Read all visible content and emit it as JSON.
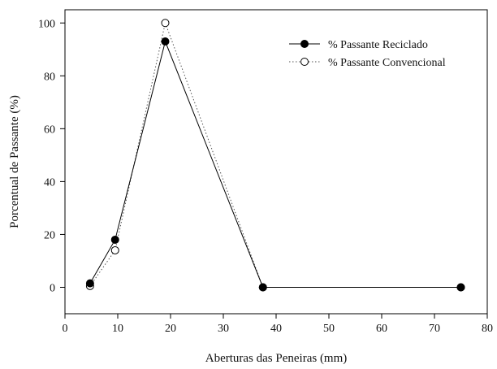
{
  "chart_data": {
    "type": "line",
    "xlabel": "Aberturas das Peneiras (mm)",
    "ylabel": "Porcentual de Passante (%)",
    "xlim": [
      0,
      80
    ],
    "ylim": [
      -10,
      105
    ],
    "xticks": [
      0,
      10,
      20,
      30,
      40,
      50,
      60,
      70,
      80
    ],
    "yticks": [
      0,
      20,
      40,
      60,
      80,
      100
    ],
    "grid": false,
    "legend_position": "top-right",
    "series": [
      {
        "name": "% Passante Reciclado",
        "marker": "filled-circle",
        "line_style": "solid",
        "color": "#000000",
        "x": [
          4.75,
          9.5,
          19,
          37.5,
          75
        ],
        "y": [
          1.5,
          18,
          93,
          0,
          0
        ]
      },
      {
        "name": "% Passante Convencional",
        "marker": "open-circle",
        "line_style": "dotted",
        "color": "#555555",
        "x": [
          4.75,
          9.5,
          19,
          37.5,
          75
        ],
        "y": [
          0.5,
          14,
          100,
          0,
          0
        ]
      }
    ]
  }
}
